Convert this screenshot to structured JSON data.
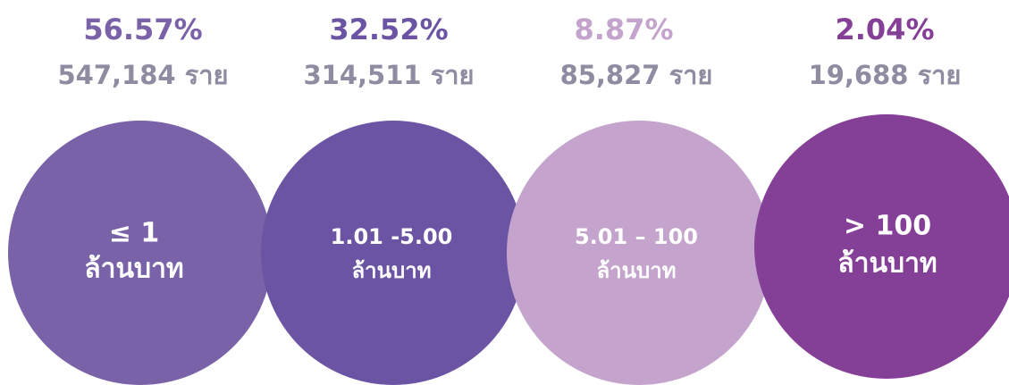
{
  "items": [
    {
      "percent": "56.57%",
      "count": "547,184 ราย",
      "label": [
        "≤  1",
        "ล้านบาท"
      ],
      "color": "#7a62a8"
    },
    {
      "percent": "32.52%",
      "count": "314,511 ราย",
      "label": [
        "1.01 -5.00",
        "ล้านบาท"
      ],
      "color": "#6b54a3"
    },
    {
      "percent": "8.87%",
      "count": "85,827 ราย",
      "label": [
        "5.01 – 100",
        "ล้านบาท"
      ],
      "color": "#c4a3cc"
    },
    {
      "percent": "2.04%",
      "count": "19,688 ราย",
      "label": [
        "> 100",
        "ล้านบาท"
      ],
      "color": "#843f97"
    }
  ]
}
